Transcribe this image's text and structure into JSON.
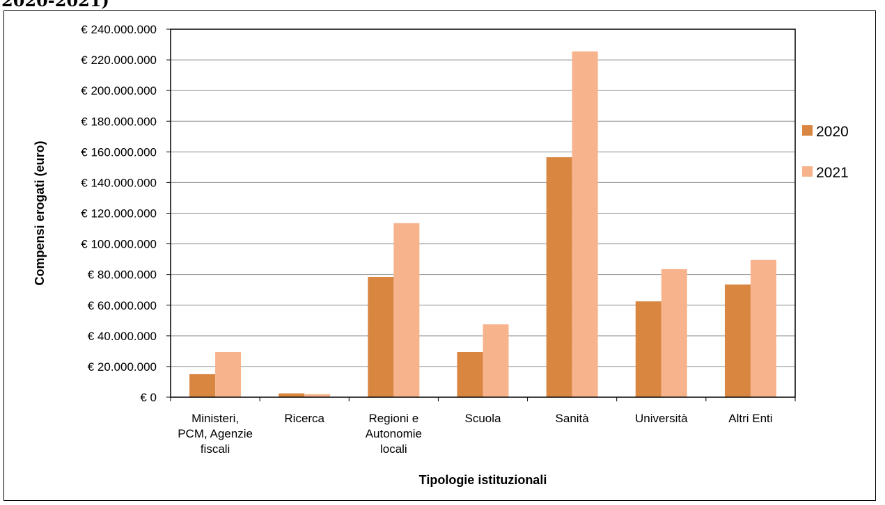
{
  "header_fragment": "2020-2021)",
  "chart_data": {
    "type": "bar",
    "categories": [
      [
        "Ministeri,",
        "PCM, Agenzie",
        "fiscali"
      ],
      [
        "Ricerca"
      ],
      [
        "Regioni e",
        "Autonomie",
        "locali"
      ],
      [
        "Scuola"
      ],
      [
        "Sanità"
      ],
      [
        "Università"
      ],
      [
        "Altri Enti"
      ]
    ],
    "series": [
      {
        "name": "2020",
        "color": "#D98641",
        "values": [
          15000000,
          2500000,
          78500000,
          29500000,
          156500000,
          62500000,
          73500000
        ]
      },
      {
        "name": "2021",
        "color": "#F7B48C",
        "values": [
          29500000,
          2000000,
          113500000,
          47500000,
          225500000,
          83500000,
          89500000
        ]
      }
    ],
    "ylim": [
      0,
      240000000
    ],
    "yticks": [
      0,
      20000000,
      40000000,
      60000000,
      80000000,
      100000000,
      120000000,
      140000000,
      160000000,
      180000000,
      200000000,
      220000000,
      240000000
    ],
    "ytick_labels": [
      "€ 0",
      "€ 20.000.000",
      "€ 40.000.000",
      "€ 60.000.000",
      "€ 80.000.000",
      "€ 100.000.000",
      "€ 120.000.000",
      "€ 140.000.000",
      "€ 160.000.000",
      "€ 180.000.000",
      "€ 200.000.000",
      "€ 220.000.000",
      "€ 240.000.000"
    ],
    "xlabel": "Tipologie istituzionali",
    "ylabel": "Compensi erogati (euro)",
    "grid": true,
    "legend_position": "right"
  }
}
